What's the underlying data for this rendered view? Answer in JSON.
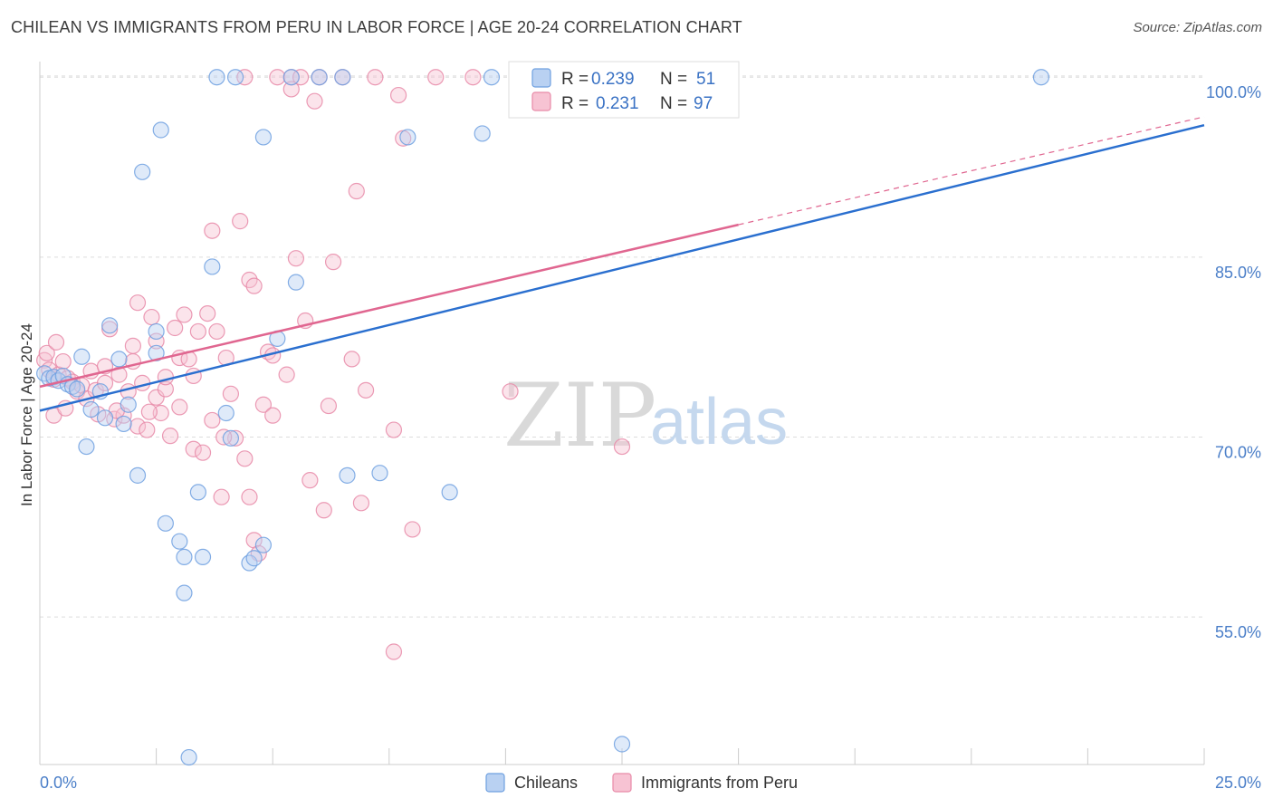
{
  "title": "CHILEAN VS IMMIGRANTS FROM PERU IN LABOR FORCE | AGE 20-24 CORRELATION CHART",
  "source": "Source: ZipAtlas.com",
  "colors": {
    "chileans": "#6fa0e0",
    "chileans_fill": "#b9d1f2",
    "chileans_line": "#2a6fcf",
    "peru": "#e88aa8",
    "peru_fill": "#f7c3d3",
    "peru_line": "#e06690",
    "grid": "#dddddd",
    "tick_text": "#4a7ec8"
  },
  "legend": {
    "rows": [
      {
        "r_label": "R =",
        "r_value": "0.239",
        "n_label": "N =",
        "n_value": "51"
      },
      {
        "r_label": "R =",
        "r_value": "0.231",
        "n_label": "N =",
        "n_value": "97"
      }
    ]
  },
  "watermark": {
    "zip": "ZIP",
    "atlas": "atlas"
  },
  "chart_data": {
    "type": "scatter",
    "title": "CHILEAN VS IMMIGRANTS FROM PERU IN LABOR FORCE | AGE 20-24 CORRELATION CHART",
    "xlabel": "",
    "ylabel": "In Labor Force | Age 20-24",
    "xlim": [
      0,
      25
    ],
    "ylim": [
      42.7,
      101.3
    ],
    "x_tick_labels": [
      "0.0%",
      "25.0%"
    ],
    "y_ticks": [
      55,
      70,
      85,
      100
    ],
    "y_tick_labels": [
      "55.0%",
      "70.0%",
      "85.0%",
      "100.0%"
    ],
    "grid": true,
    "legend_placement": "top-center",
    "series": [
      {
        "name": "Chileans",
        "r": 0.239,
        "n": 51,
        "trend": {
          "x0": 0,
          "y0": 72.2,
          "x1": 25,
          "y1": 96.0,
          "dashed_after": null
        },
        "points": [
          [
            0.1,
            75.3
          ],
          [
            0.2,
            74.9
          ],
          [
            0.3,
            75.0
          ],
          [
            0.4,
            74.7
          ],
          [
            0.5,
            75.1
          ],
          [
            0.6,
            74.4
          ],
          [
            0.7,
            74.2
          ],
          [
            0.8,
            74.0
          ],
          [
            0.9,
            76.7
          ],
          [
            1.0,
            69.2
          ],
          [
            1.1,
            72.3
          ],
          [
            1.3,
            73.8
          ],
          [
            1.4,
            71.6
          ],
          [
            1.5,
            79.3
          ],
          [
            1.7,
            76.5
          ],
          [
            1.8,
            71.1
          ],
          [
            1.9,
            72.7
          ],
          [
            2.1,
            66.8
          ],
          [
            2.2,
            92.1
          ],
          [
            2.5,
            77.0
          ],
          [
            2.5,
            78.8
          ],
          [
            2.6,
            95.6
          ],
          [
            2.7,
            62.8
          ],
          [
            3.0,
            61.3
          ],
          [
            3.1,
            60.0
          ],
          [
            3.1,
            57.0
          ],
          [
            3.2,
            43.3
          ],
          [
            3.4,
            65.4
          ],
          [
            3.5,
            60.0
          ],
          [
            3.7,
            84.2
          ],
          [
            3.8,
            100.0
          ],
          [
            4.0,
            72.0
          ],
          [
            4.1,
            69.9
          ],
          [
            4.2,
            100.0
          ],
          [
            4.5,
            59.5
          ],
          [
            4.6,
            59.9
          ],
          [
            4.8,
            61.0
          ],
          [
            4.8,
            95.0
          ],
          [
            5.1,
            78.2
          ],
          [
            5.4,
            100.0
          ],
          [
            5.5,
            82.9
          ],
          [
            6.0,
            100.0
          ],
          [
            6.6,
            66.8
          ],
          [
            6.5,
            100.0
          ],
          [
            7.3,
            67.0
          ],
          [
            7.9,
            95.0
          ],
          [
            8.8,
            65.4
          ],
          [
            9.5,
            95.3
          ],
          [
            9.7,
            100.0
          ],
          [
            12.5,
            44.4
          ],
          [
            21.5,
            100.0
          ]
        ]
      },
      {
        "name": "Immigrants from Peru",
        "r": 0.231,
        "n": 97,
        "trend": {
          "x0": 0,
          "y0": 74.2,
          "x1": 15.0,
          "y1": 87.7,
          "dashed_to_x": 25,
          "dashed_to_y": 96.7
        },
        "points": [
          [
            0.1,
            76.4
          ],
          [
            0.2,
            75.6
          ],
          [
            0.3,
            74.8
          ],
          [
            0.3,
            71.8
          ],
          [
            0.4,
            75.2
          ],
          [
            0.5,
            76.3
          ],
          [
            0.6,
            74.9
          ],
          [
            0.7,
            74.6
          ],
          [
            0.8,
            73.8
          ],
          [
            0.9,
            74.3
          ],
          [
            1.0,
            73.2
          ],
          [
            1.1,
            75.5
          ],
          [
            1.2,
            73.9
          ],
          [
            1.4,
            75.9
          ],
          [
            1.4,
            74.5
          ],
          [
            1.5,
            79.0
          ],
          [
            1.6,
            71.5
          ],
          [
            1.7,
            75.2
          ],
          [
            1.8,
            71.8
          ],
          [
            1.9,
            73.8
          ],
          [
            2.0,
            76.3
          ],
          [
            2.0,
            77.6
          ],
          [
            2.1,
            70.9
          ],
          [
            2.1,
            81.2
          ],
          [
            2.2,
            74.5
          ],
          [
            2.3,
            70.6
          ],
          [
            2.4,
            80.0
          ],
          [
            2.5,
            78.0
          ],
          [
            2.5,
            73.3
          ],
          [
            2.6,
            72.0
          ],
          [
            2.7,
            74.0
          ],
          [
            2.7,
            75.0
          ],
          [
            2.8,
            70.1
          ],
          [
            2.9,
            79.1
          ],
          [
            3.0,
            76.6
          ],
          [
            3.0,
            72.5
          ],
          [
            3.1,
            80.2
          ],
          [
            3.2,
            76.5
          ],
          [
            3.3,
            75.1
          ],
          [
            3.3,
            69.0
          ],
          [
            3.4,
            78.8
          ],
          [
            3.5,
            68.7
          ],
          [
            3.6,
            80.3
          ],
          [
            3.7,
            87.2
          ],
          [
            3.7,
            71.4
          ],
          [
            3.8,
            78.8
          ],
          [
            3.9,
            65.0
          ],
          [
            4.0,
            76.6
          ],
          [
            4.1,
            73.6
          ],
          [
            4.2,
            69.9
          ],
          [
            4.3,
            88.0
          ],
          [
            4.4,
            68.2
          ],
          [
            4.4,
            100.0
          ],
          [
            4.5,
            83.1
          ],
          [
            4.5,
            65.0
          ],
          [
            4.6,
            82.6
          ],
          [
            4.6,
            61.4
          ],
          [
            4.7,
            60.3
          ],
          [
            4.8,
            72.7
          ],
          [
            4.9,
            77.1
          ],
          [
            5.0,
            76.8
          ],
          [
            5.0,
            71.8
          ],
          [
            5.1,
            100.0
          ],
          [
            5.3,
            75.2
          ],
          [
            5.4,
            100.0
          ],
          [
            5.4,
            99.0
          ],
          [
            5.5,
            84.9
          ],
          [
            5.6,
            100.0
          ],
          [
            5.7,
            79.7
          ],
          [
            5.8,
            66.4
          ],
          [
            5.9,
            98.0
          ],
          [
            6.0,
            100.0
          ],
          [
            6.1,
            63.9
          ],
          [
            6.2,
            72.6
          ],
          [
            6.3,
            84.6
          ],
          [
            6.5,
            100.0
          ],
          [
            6.7,
            76.5
          ],
          [
            6.8,
            90.5
          ],
          [
            6.9,
            64.5
          ],
          [
            7.0,
            73.9
          ],
          [
            7.2,
            100.0
          ],
          [
            7.6,
            70.6
          ],
          [
            7.6,
            52.1
          ],
          [
            7.7,
            98.5
          ],
          [
            7.8,
            94.9
          ],
          [
            8.0,
            62.3
          ],
          [
            8.5,
            100.0
          ],
          [
            9.3,
            100.0
          ],
          [
            10.1,
            73.8
          ],
          [
            12.5,
            69.2
          ],
          [
            0.15,
            77.0
          ],
          [
            0.35,
            77.9
          ],
          [
            0.55,
            72.4
          ],
          [
            1.25,
            71.9
          ],
          [
            1.65,
            72.2
          ],
          [
            2.35,
            72.1
          ],
          [
            3.95,
            70.0
          ]
        ]
      }
    ]
  },
  "bottom_legend": {
    "items": [
      "Chileans",
      "Immigrants from Peru"
    ]
  }
}
